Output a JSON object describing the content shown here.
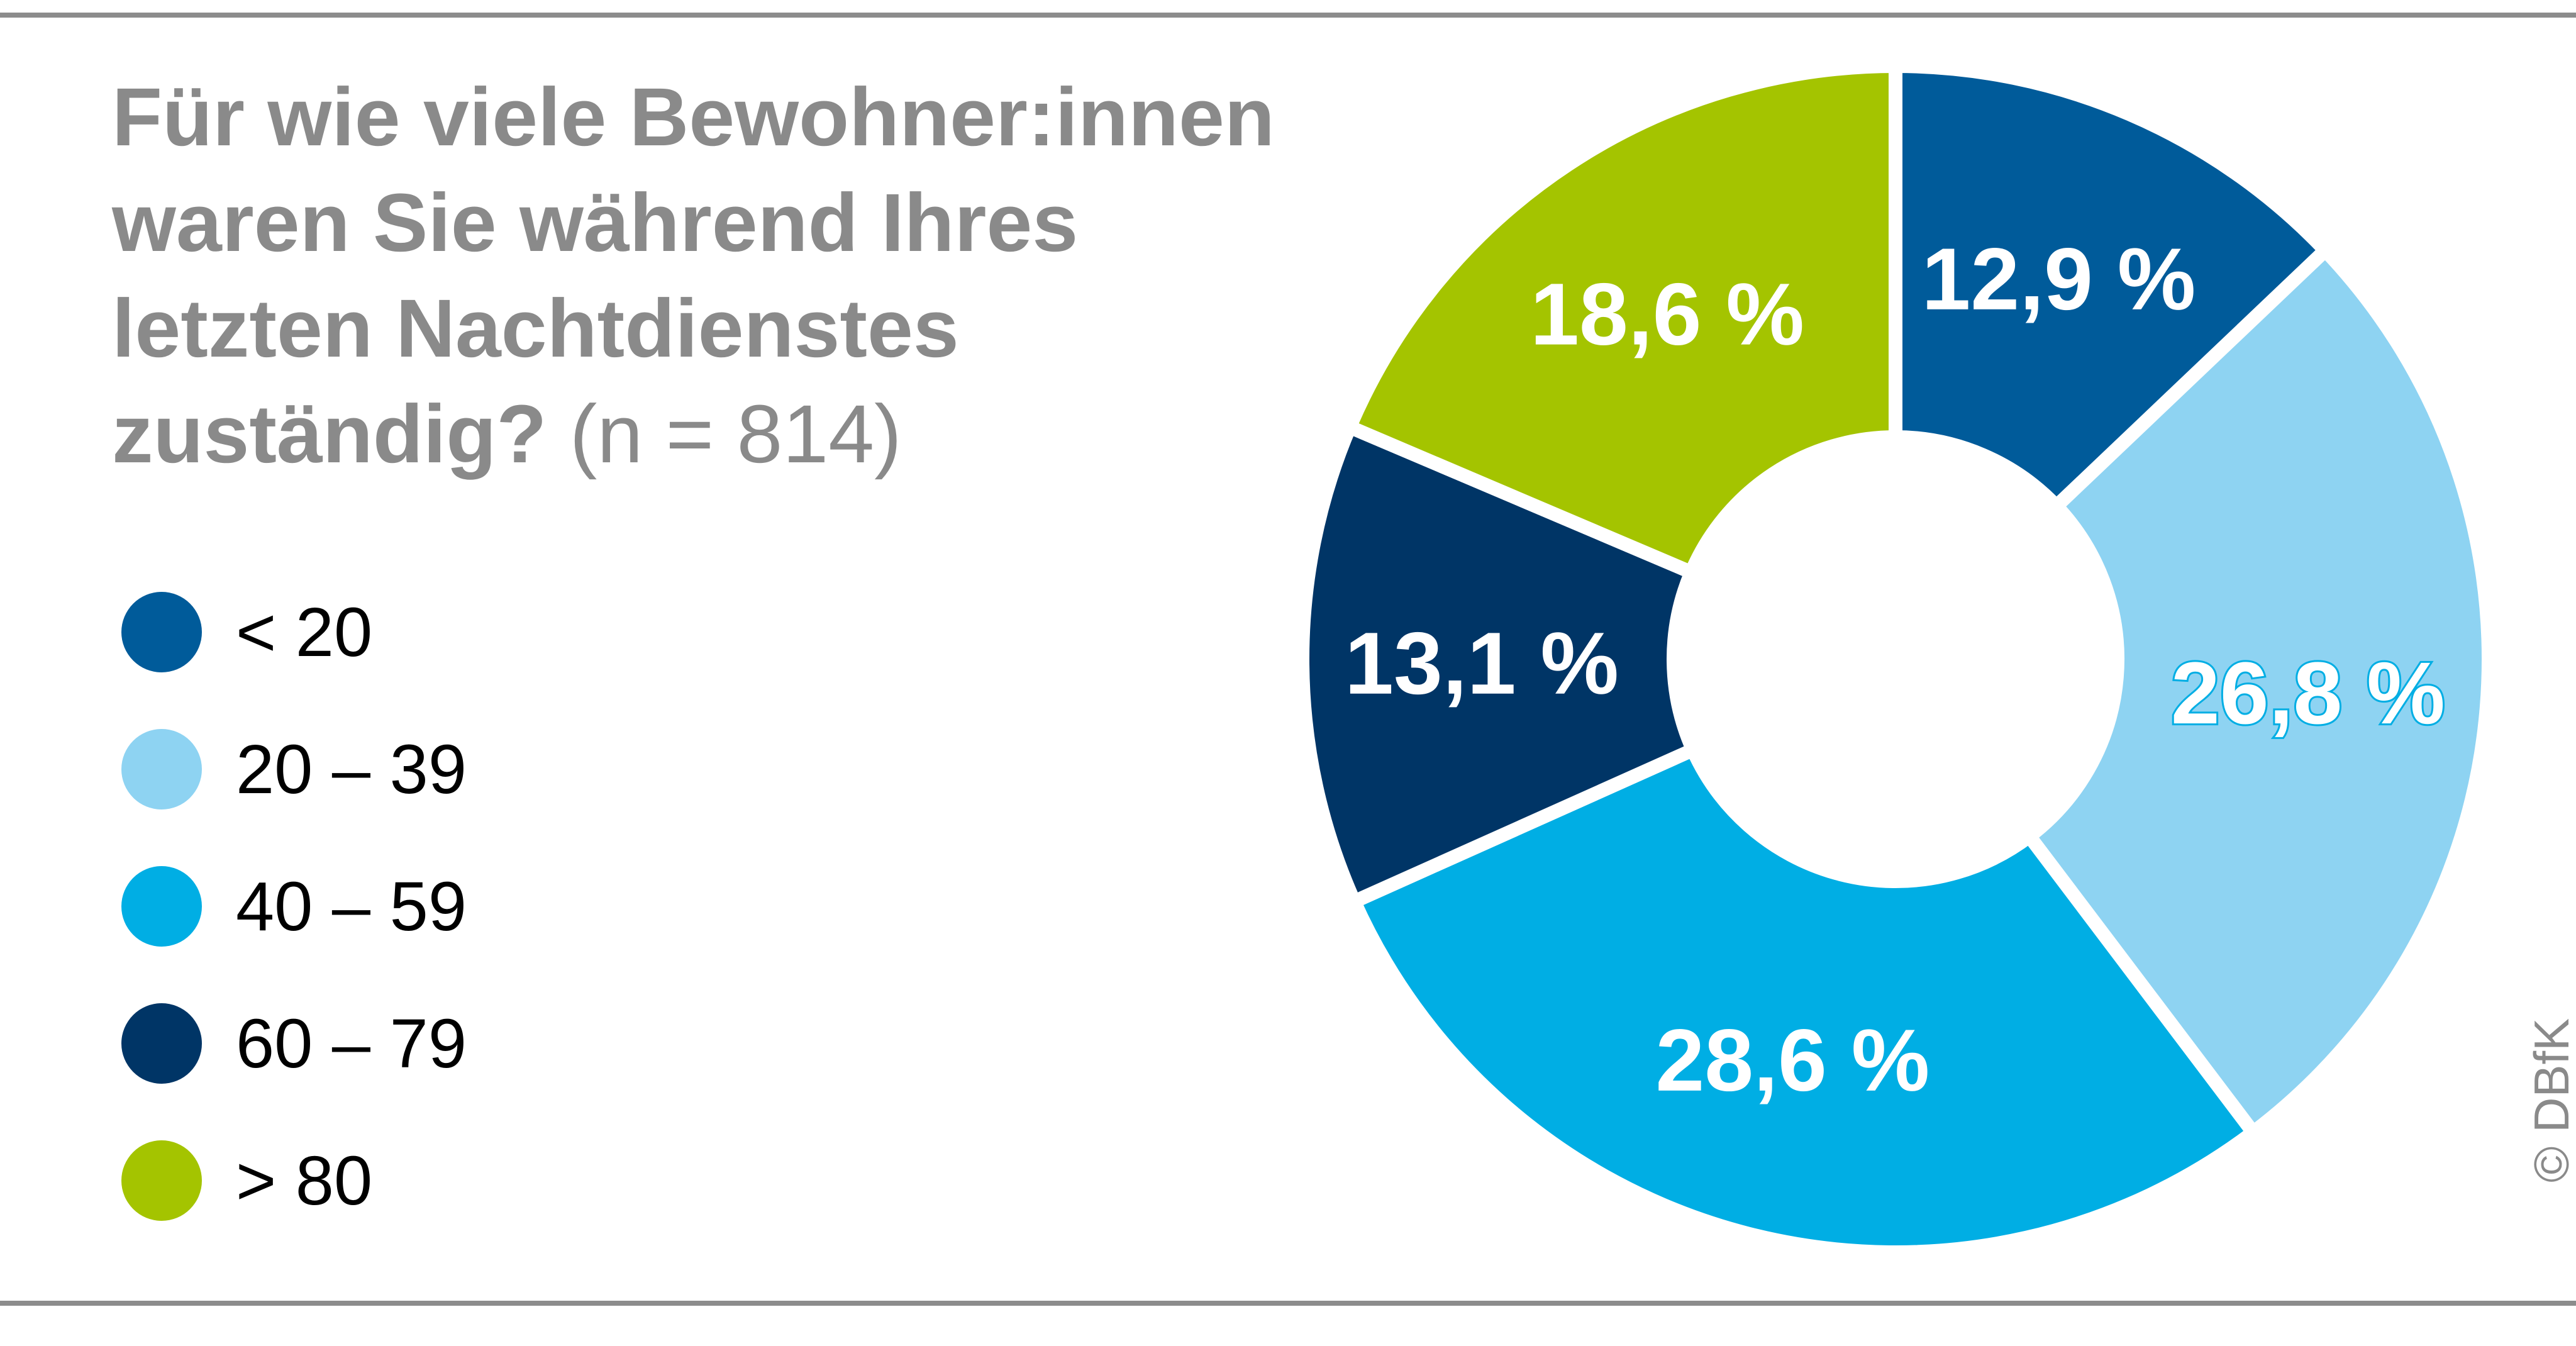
{
  "chart_data": {
    "type": "pie",
    "variant": "donut",
    "title_lines": [
      "Für wie viele Bewohner:innen",
      "waren Sie während Ihres",
      "letzten Nachtdienstes",
      "zuständig?"
    ],
    "title_suffix": "(n = 814)",
    "legend_placement": "left",
    "categories": [
      "< 20",
      "20 – 39",
      "40 – 59",
      "60 – 79",
      "> 80"
    ],
    "values": [
      12.9,
      26.8,
      28.6,
      13.1,
      18.6
    ],
    "value_labels": [
      "12,9 %",
      "26,8 %",
      "28,6 %",
      "13,1 %",
      "18,6 %"
    ],
    "colors": [
      "#005b9a",
      "#8ed3f2",
      "#00aee4",
      "#003566",
      "#a4c400"
    ]
  },
  "copyright": "© DBfK"
}
